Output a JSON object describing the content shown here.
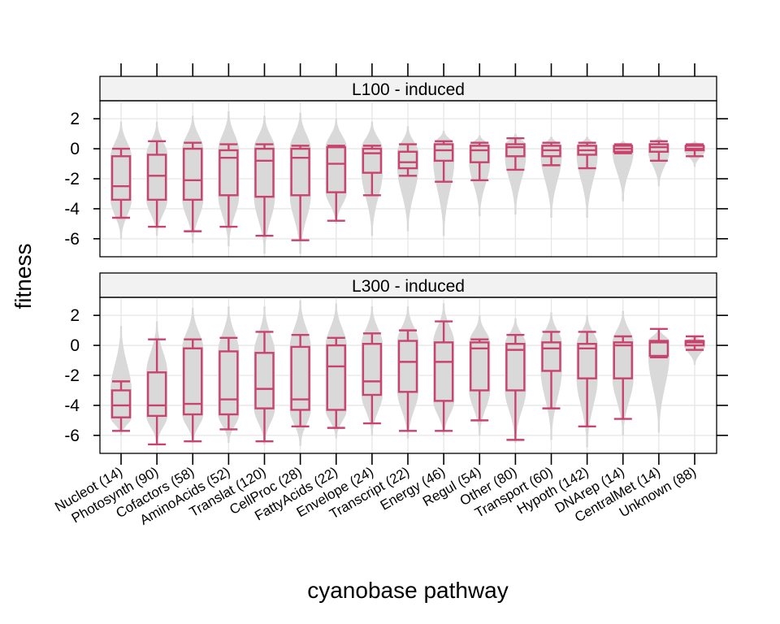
{
  "chart_data": {
    "type": "box-violin",
    "xlabel": "cyanobase pathway",
    "ylabel": "fitness",
    "ylim": [
      -7.2,
      3.2
    ],
    "yticks": [
      2,
      0,
      -2,
      -4,
      -6
    ],
    "ytick_labels": [
      "2",
      "0",
      "-2",
      "-4",
      "-6"
    ],
    "categories": [
      "Nucleot (14)",
      "Photosynth (90)",
      "Cofactors (58)",
      "AminoAcids (52)",
      "Translat (120)",
      "CellProc (28)",
      "FattyAcids (22)",
      "Envelope (24)",
      "Transcript (22)",
      "Energy (46)",
      "Regul (54)",
      "Other (80)",
      "Transport (60)",
      "Hypoth (142)",
      "DNArep (14)",
      "CentralMet (14)",
      "Unknown (88)"
    ],
    "colors": {
      "box": "#c8436d",
      "violin": "#d9d9d9",
      "strip": "#f2f2f2",
      "grid": "#e6e6e6"
    },
    "panels": [
      {
        "label": "L100 - induced",
        "boxes": [
          {
            "wlo": -4.6,
            "q1": -3.4,
            "med": -2.5,
            "q3": -0.5,
            "whi": 0.0,
            "vlo": -6.0,
            "vhi": 1.8
          },
          {
            "wlo": -5.2,
            "q1": -3.4,
            "med": -1.8,
            "q3": -0.4,
            "whi": 0.5,
            "vlo": -5.8,
            "vhi": 1.8
          },
          {
            "wlo": -5.5,
            "q1": -3.4,
            "med": -2.1,
            "q3": 0.0,
            "whi": 0.4,
            "vlo": -6.3,
            "vhi": 2.2
          },
          {
            "wlo": -5.2,
            "q1": -3.1,
            "med": -0.6,
            "q3": -0.1,
            "whi": 0.3,
            "vlo": -6.5,
            "vhi": 2.5
          },
          {
            "wlo": -5.8,
            "q1": -3.2,
            "med": -0.8,
            "q3": 0.0,
            "whi": 0.3,
            "vlo": -7.0,
            "vhi": 2.2
          },
          {
            "wlo": -6.1,
            "q1": -3.1,
            "med": -0.6,
            "q3": 0.0,
            "whi": 0.2,
            "vlo": -7.0,
            "vhi": 2.4
          },
          {
            "wlo": -4.8,
            "q1": -2.9,
            "med": -1.0,
            "q3": 0.1,
            "whi": 0.2,
            "vlo": -5.0,
            "vhi": 2.0
          },
          {
            "wlo": -3.1,
            "q1": -1.6,
            "med": -0.3,
            "q3": 0.0,
            "whi": 0.2,
            "vlo": -5.8,
            "vhi": 1.8
          },
          {
            "wlo": -1.8,
            "q1": -1.3,
            "med": -0.9,
            "q3": -0.2,
            "whi": 0.3,
            "vlo": -5.5,
            "vhi": 1.5
          },
          {
            "wlo": -2.2,
            "q1": -0.8,
            "med": -0.1,
            "q3": 0.3,
            "whi": 0.5,
            "vlo": -5.8,
            "vhi": 1.2
          },
          {
            "wlo": -2.1,
            "q1": -0.9,
            "med": -0.1,
            "q3": 0.2,
            "whi": 0.4,
            "vlo": -4.5,
            "vhi": 0.9
          },
          {
            "wlo": -1.4,
            "q1": -0.5,
            "med": 0.1,
            "q3": 0.3,
            "whi": 0.7,
            "vlo": -4.4,
            "vhi": 1.0
          },
          {
            "wlo": -1.1,
            "q1": -0.5,
            "med": -0.1,
            "q3": 0.2,
            "whi": 0.4,
            "vlo": -4.6,
            "vhi": 0.8
          },
          {
            "wlo": -1.3,
            "q1": -0.4,
            "med": -0.1,
            "q3": 0.2,
            "whi": 0.4,
            "vlo": -4.6,
            "vhi": 0.8
          },
          {
            "wlo": -0.3,
            "q1": -0.2,
            "med": 0.0,
            "q3": 0.2,
            "whi": 0.3,
            "vlo": -3.5,
            "vhi": 0.5
          },
          {
            "wlo": -0.8,
            "q1": -0.2,
            "med": 0.1,
            "q3": 0.3,
            "whi": 0.5,
            "vlo": -2.5,
            "vhi": 0.8
          },
          {
            "wlo": -0.5,
            "q1": -0.1,
            "med": 0.0,
            "q3": 0.2,
            "whi": 0.3,
            "vlo": -1.2,
            "vhi": 0.5
          }
        ]
      },
      {
        "label": "L300 - induced",
        "boxes": [
          {
            "wlo": -5.7,
            "q1": -4.8,
            "med": -4.0,
            "q3": -3.0,
            "whi": -2.4,
            "vlo": -6.0,
            "vhi": 1.3
          },
          {
            "wlo": -6.6,
            "q1": -4.7,
            "med": -4.0,
            "q3": -1.8,
            "whi": 0.4,
            "vlo": -6.6,
            "vhi": 1.6
          },
          {
            "wlo": -6.4,
            "q1": -4.6,
            "med": -3.9,
            "q3": -0.2,
            "whi": 0.4,
            "vlo": -6.5,
            "vhi": 2.5
          },
          {
            "wlo": -5.6,
            "q1": -4.6,
            "med": -3.6,
            "q3": -0.4,
            "whi": 0.5,
            "vlo": -6.5,
            "vhi": 2.6
          },
          {
            "wlo": -6.4,
            "q1": -4.2,
            "med": -2.9,
            "q3": -0.5,
            "whi": 0.9,
            "vlo": -6.6,
            "vhi": 2.6
          },
          {
            "wlo": -5.4,
            "q1": -4.3,
            "med": -3.6,
            "q3": -0.1,
            "whi": 0.7,
            "vlo": -6.7,
            "vhi": 3.0
          },
          {
            "wlo": -5.5,
            "q1": -4.3,
            "med": -1.4,
            "q3": 0.0,
            "whi": 0.5,
            "vlo": -6.2,
            "vhi": 2.8
          },
          {
            "wlo": -5.2,
            "q1": -3.3,
            "med": -2.4,
            "q3": 0.1,
            "whi": 0.8,
            "vlo": -6.0,
            "vhi": 2.6
          },
          {
            "wlo": -5.7,
            "q1": -3.1,
            "med": -1.1,
            "q3": 0.3,
            "whi": 1.0,
            "vlo": -6.2,
            "vhi": 2.6
          },
          {
            "wlo": -5.7,
            "q1": -3.7,
            "med": -1.1,
            "q3": 0.2,
            "whi": 1.6,
            "vlo": -6.0,
            "vhi": 2.8
          },
          {
            "wlo": -5.0,
            "q1": -3.0,
            "med": -0.2,
            "q3": 0.2,
            "whi": 0.4,
            "vlo": -6.0,
            "vhi": 2.0
          },
          {
            "wlo": -6.3,
            "q1": -3.0,
            "med": -0.3,
            "q3": 0.1,
            "whi": 0.7,
            "vlo": -6.5,
            "vhi": 1.8
          },
          {
            "wlo": -4.2,
            "q1": -1.7,
            "med": -0.2,
            "q3": 0.2,
            "whi": 0.9,
            "vlo": -6.3,
            "vhi": 2.2
          },
          {
            "wlo": -5.4,
            "q1": -2.2,
            "med": -0.2,
            "q3": 0.1,
            "whi": 0.9,
            "vlo": -6.8,
            "vhi": 2.0
          },
          {
            "wlo": -4.9,
            "q1": -2.2,
            "med": 0.0,
            "q3": 0.2,
            "whi": 0.6,
            "vlo": -6.0,
            "vhi": 2.3
          },
          {
            "wlo": -0.8,
            "q1": -0.7,
            "med": 0.2,
            "q3": 0.3,
            "whi": 1.1,
            "vlo": -5.8,
            "vhi": 1.1
          },
          {
            "wlo": -0.3,
            "q1": 0.0,
            "med": 0.2,
            "q3": 0.3,
            "whi": 0.6,
            "vlo": -1.3,
            "vhi": 0.6
          }
        ]
      }
    ]
  }
}
